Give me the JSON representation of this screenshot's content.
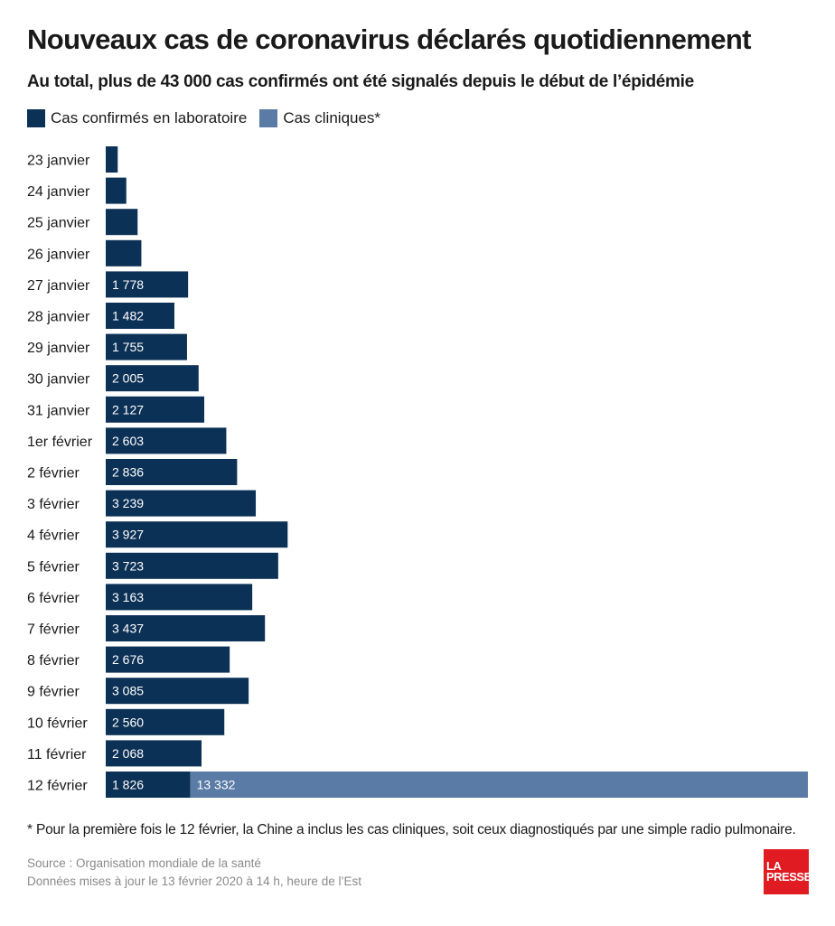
{
  "title": "Nouveaux cas de coronavirus déclarés quotidiennement",
  "subtitle": "Au total, plus de 43 000 cas confirmés ont été signalés depuis le début de l’épidémie",
  "footnote": "* Pour la première fois le 12 février, la Chine a inclus les cas cliniques, soit ceux diagnostiqués par une simple radio pulmonaire.",
  "source_line1": "Source : Organisation mondiale de la santé",
  "source_line2": "Données mises à jour le 13 février 2020 à 14 h, heure de l’Est",
  "logo_line1": "LA",
  "logo_line2": "PRESSE",
  "colors": {
    "laboratoire": "#0c3156",
    "cliniques": "#5a7ba5"
  },
  "chart_data": {
    "type": "bar",
    "orientation": "horizontal",
    "stacked": true,
    "categories": [
      "23 janvier",
      "24 janvier",
      "25 janvier",
      "26 janvier",
      "27 janvier",
      "28 janvier",
      "29 janvier",
      "30 janvier",
      "31 janvier",
      "1er février",
      "2 février",
      "3 février",
      "4 février",
      "5 février",
      "6 février",
      "7 février",
      "8 février",
      "9 février",
      "10 février",
      "11 février",
      "12 février"
    ],
    "series": [
      {
        "name": "Cas confirmés en laboratoire",
        "values": [
          259,
          444,
          688,
          769,
          1778,
          1482,
          1755,
          2005,
          2127,
          2603,
          2836,
          3239,
          3927,
          3723,
          3163,
          3437,
          2676,
          3085,
          2560,
          2068,
          1826
        ],
        "labels": [
          "",
          "",
          "",
          "",
          "1 778",
          "1 482",
          "1 755",
          "2 005",
          "2 127",
          "2 603",
          "2 836",
          "3 239",
          "3 927",
          "3 723",
          "3 163",
          "3 437",
          "2 676",
          "3 085",
          "2 560",
          "2 068",
          "1 826"
        ]
      },
      {
        "name": "Cas cliniques*",
        "values": [
          0,
          0,
          0,
          0,
          0,
          0,
          0,
          0,
          0,
          0,
          0,
          0,
          0,
          0,
          0,
          0,
          0,
          0,
          0,
          0,
          13332
        ],
        "labels": [
          "",
          "",
          "",
          "",
          "",
          "",
          "",
          "",
          "",
          "",
          "",
          "",
          "",
          "",
          "",
          "",
          "",
          "",
          "",
          "",
          "13 332"
        ]
      }
    ],
    "xlim": [
      0,
      15158
    ],
    "grid": false,
    "legend": "top-left"
  }
}
